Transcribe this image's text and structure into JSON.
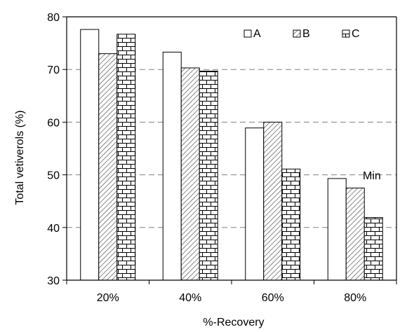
{
  "chart_data": {
    "type": "bar",
    "categories": [
      "20%",
      "40%",
      "60%",
      "80%"
    ],
    "series": [
      {
        "name": "A",
        "values": [
          77.6,
          73.3,
          58.9,
          49.3
        ],
        "fill": "solid-white"
      },
      {
        "name": "B",
        "values": [
          73.0,
          70.3,
          60.0,
          47.5
        ],
        "fill": "diagonal-hatch"
      },
      {
        "name": "C",
        "values": [
          76.7,
          69.7,
          51.1,
          41.9
        ],
        "fill": "brick"
      }
    ],
    "xlabel": "%-Recovery",
    "ylabel": "Total vetiverols (%)",
    "ylim": [
      30,
      80
    ],
    "yticks": [
      30,
      40,
      50,
      60,
      70,
      80
    ],
    "gridlines": [
      40,
      50,
      60,
      70
    ],
    "grid_style": "dashed horizontal",
    "legend_position": "top-right",
    "annotation": {
      "text": "Min",
      "category": "80%",
      "y": 50
    },
    "colors": {
      "bar_stroke": "#000000",
      "bar_fill": "#ffffff",
      "grid": "#808080",
      "hatch": "#555555"
    }
  }
}
